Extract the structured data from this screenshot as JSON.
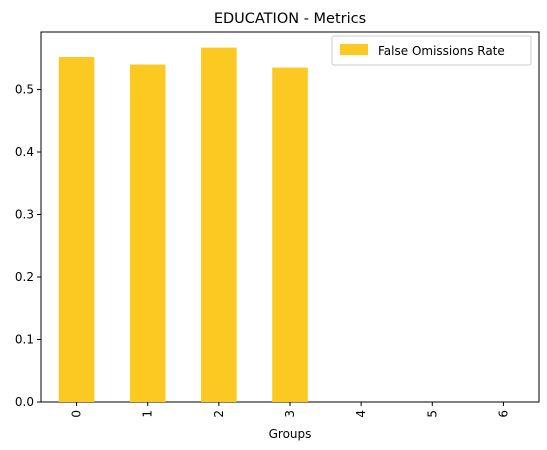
{
  "chart_data": {
    "type": "bar",
    "title": "EDUCATION - Metrics",
    "xlabel": "Groups",
    "ylabel": "",
    "categories": [
      "0",
      "1",
      "2",
      "3",
      "4",
      "5",
      "6"
    ],
    "series": [
      {
        "name": "False Omissions Rate",
        "values": [
          0.552,
          0.54,
          0.567,
          0.535,
          0,
          0,
          0
        ],
        "color": "#fcc822"
      }
    ],
    "ylim": [
      0,
      0.592
    ],
    "yticks": [
      0.0,
      0.1,
      0.2,
      0.3,
      0.4,
      0.5
    ],
    "ytick_labels": [
      "0.0",
      "0.1",
      "0.2",
      "0.3",
      "0.4",
      "0.5"
    ],
    "grid": false,
    "legend_position": "top-right"
  }
}
